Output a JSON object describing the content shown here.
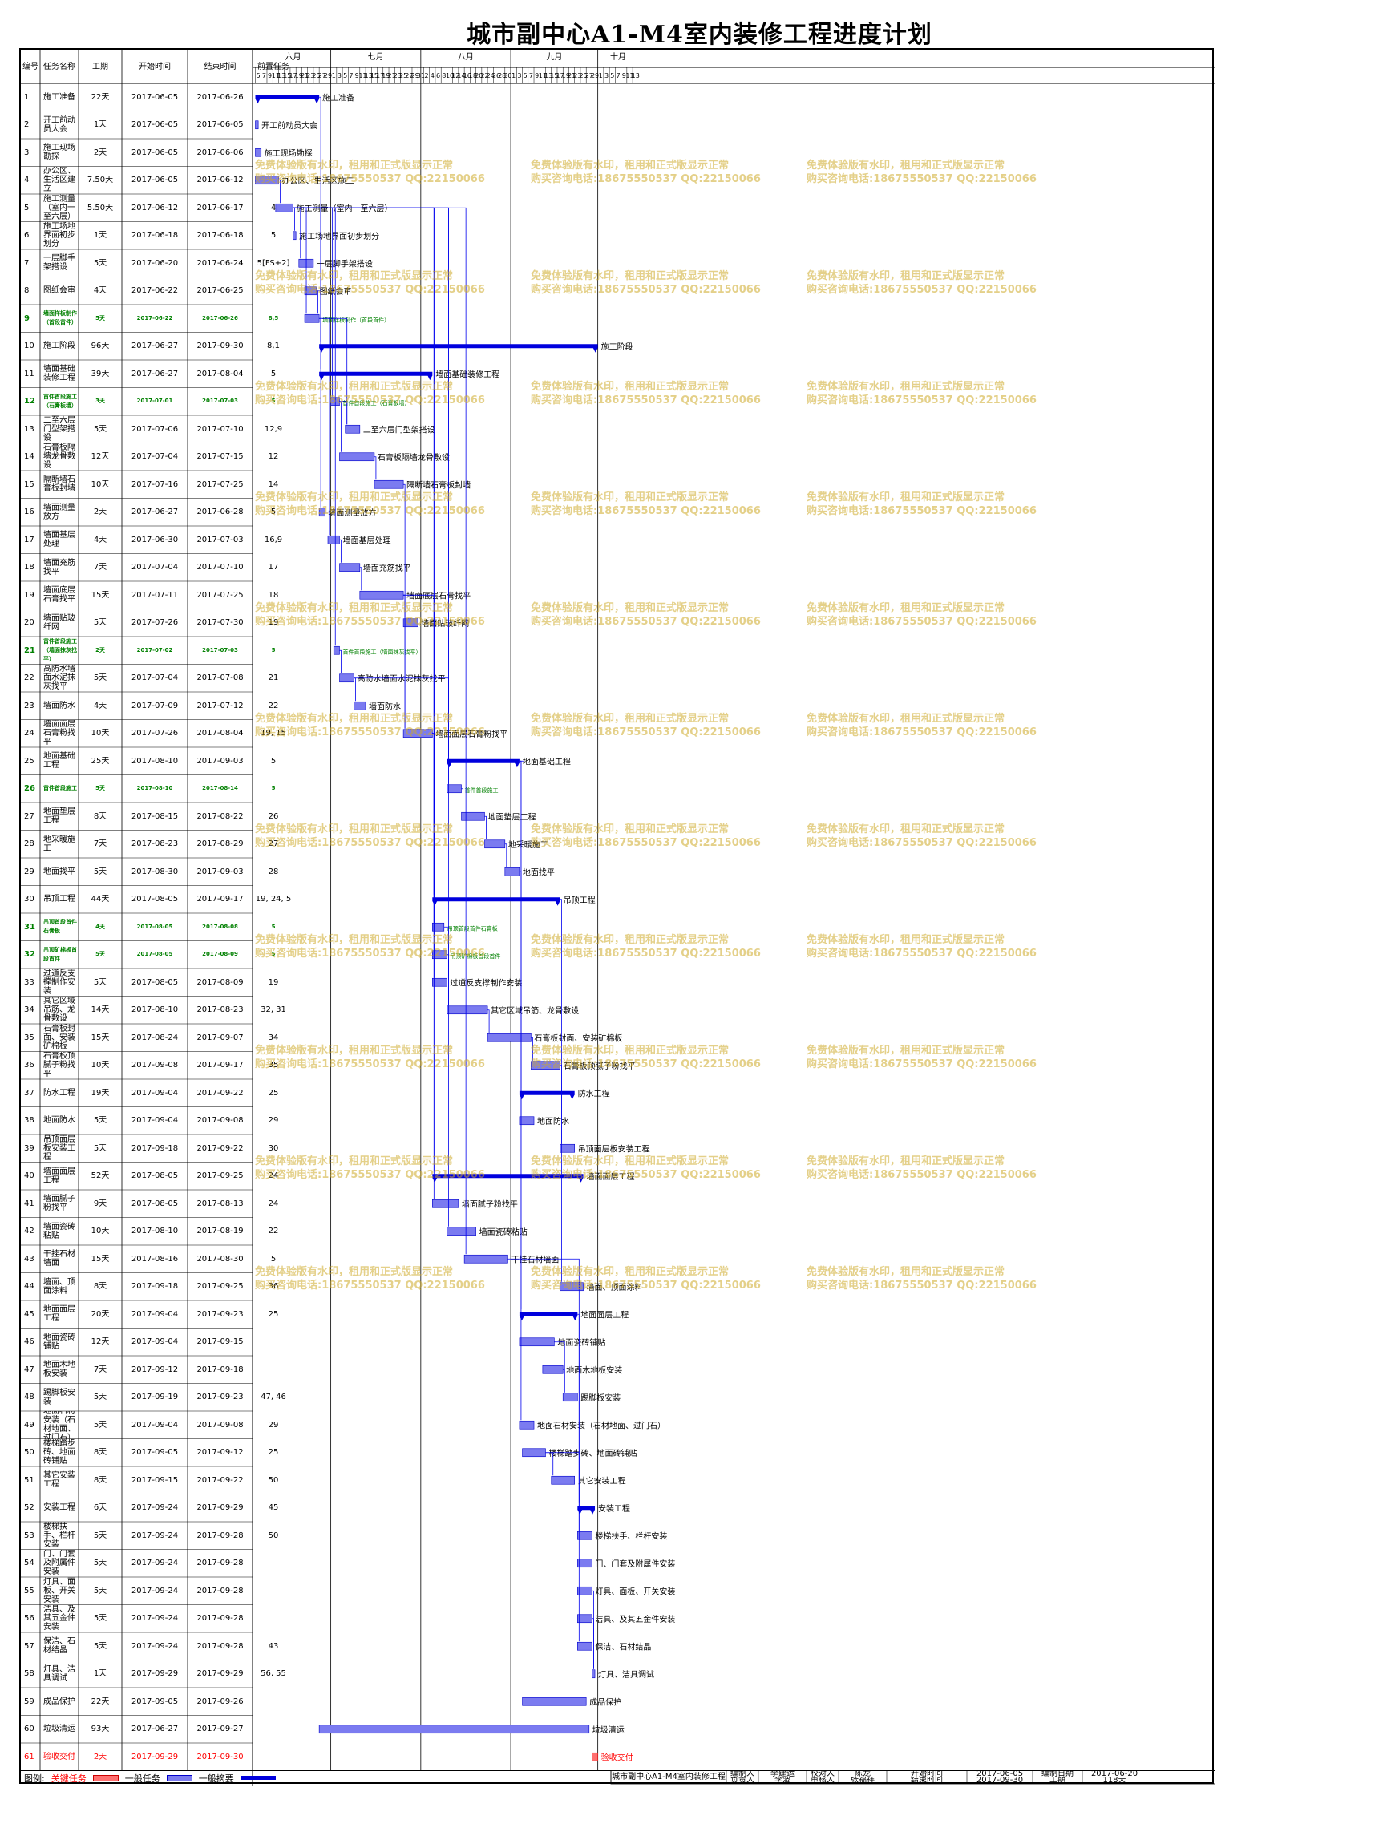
{
  "title": "城市副中心A1-M4室内装修工程进度计划",
  "columns": {
    "id": "编号",
    "name": "任务名称",
    "dur": "工期",
    "start": "开始时间",
    "end": "结束时间",
    "pred": "前置任务"
  },
  "colors": {
    "task": "#7b7bf0",
    "task_border": "#0000cc",
    "summary": "#0000dd",
    "critical": "#ff7070",
    "link": "#0000ee",
    "highlight_text": "#008000",
    "critical_text": "#ff0000",
    "watermark": "#d4b040"
  },
  "months": [
    "六月",
    "七月",
    "八月",
    "九月",
    "十月"
  ],
  "month_days": [
    [
      "5",
      "7",
      "9",
      "11",
      "13",
      "15",
      "17",
      "19",
      "21",
      "23",
      "25",
      "27",
      "29"
    ],
    [
      "1",
      "3",
      "5",
      "7",
      "9",
      "11",
      "13",
      "15",
      "17",
      "19",
      "21",
      "23",
      "25",
      "27",
      "29",
      "31"
    ],
    [
      "2",
      "4",
      "6",
      "8",
      "10",
      "12",
      "14",
      "16",
      "18",
      "20",
      "22",
      "24",
      "26",
      "28",
      "30"
    ],
    [
      "1",
      "3",
      "5",
      "7",
      "9",
      "11",
      "13",
      "15",
      "17",
      "19",
      "21",
      "23",
      "25",
      "27",
      "29"
    ],
    [
      "1",
      "3",
      "5",
      "7",
      "9",
      "11",
      "13"
    ]
  ],
  "tasks": [
    {
      "id": "1",
      "name": "施工准备",
      "dur": "22天",
      "start": "2017-06-05",
      "end": "2017-06-26",
      "pred": "",
      "label": "施工准备",
      "kind": "summary"
    },
    {
      "id": "2",
      "name": "开工前动员大会",
      "dur": "1天",
      "start": "2017-06-05",
      "end": "2017-06-05",
      "pred": "",
      "label": "开工前动员大会",
      "kind": "task"
    },
    {
      "id": "3",
      "name": "施工现场勘探",
      "dur": "2天",
      "start": "2017-06-05",
      "end": "2017-06-06",
      "pred": "",
      "label": "施工现场勘探",
      "kind": "task"
    },
    {
      "id": "4",
      "name": "办公区、生活区建立",
      "dur": "7.50天",
      "start": "2017-06-05",
      "end": "2017-06-12",
      "pred": "",
      "label": "办公区、生活区施工",
      "kind": "task"
    },
    {
      "id": "5",
      "name": "施工测量（室内一至六层）",
      "dur": "5.50天",
      "start": "2017-06-12",
      "end": "2017-06-17",
      "pred": "4",
      "label": "施工测量（室内一至六层）",
      "kind": "task"
    },
    {
      "id": "6",
      "name": "施工场地界面初步划分",
      "dur": "1天",
      "start": "2017-06-18",
      "end": "2017-06-18",
      "pred": "5",
      "label": "施工场地界面初步划分",
      "kind": "task"
    },
    {
      "id": "7",
      "name": "一层脚手架搭设",
      "dur": "5天",
      "start": "2017-06-20",
      "end": "2017-06-24",
      "pred": "5[FS+2]",
      "label": "一层脚手架搭设",
      "kind": "task"
    },
    {
      "id": "8",
      "name": "图纸会审",
      "dur": "4天",
      "start": "2017-06-22",
      "end": "2017-06-25",
      "pred": "",
      "label": "图纸会审",
      "kind": "task"
    },
    {
      "id": "9",
      "name": "墙面样板制作（首段首件）",
      "dur": "5天",
      "start": "2017-06-22",
      "end": "2017-06-26",
      "pred": "8,5",
      "label": "墙面样板制作（首段首件）",
      "kind": "green"
    },
    {
      "id": "10",
      "name": "施工阶段",
      "dur": "96天",
      "start": "2017-06-27",
      "end": "2017-09-30",
      "pred": "8,1",
      "label": "施工阶段",
      "kind": "summary"
    },
    {
      "id": "11",
      "name": "墙面基础装修工程",
      "dur": "39天",
      "start": "2017-06-27",
      "end": "2017-08-04",
      "pred": "5",
      "label": "墙面基础装修工程",
      "kind": "summary"
    },
    {
      "id": "12",
      "name": "首件首段施工（石膏板墙）",
      "dur": "3天",
      "start": "2017-07-01",
      "end": "2017-07-03",
      "pred": "5",
      "label": "首件首段施工（石膏板墙）",
      "kind": "green"
    },
    {
      "id": "13",
      "name": "二至六层门型架搭设",
      "dur": "5天",
      "start": "2017-07-06",
      "end": "2017-07-10",
      "pred": "12,9",
      "label": "二至六层门型架搭设",
      "kind": "task"
    },
    {
      "id": "14",
      "name": "石膏板隔墙龙骨敷设",
      "dur": "12天",
      "start": "2017-07-04",
      "end": "2017-07-15",
      "pred": "12",
      "label": "石膏板隔墙龙骨敷设",
      "kind": "task"
    },
    {
      "id": "15",
      "name": "隔断墙石膏板封墙",
      "dur": "10天",
      "start": "2017-07-16",
      "end": "2017-07-25",
      "pred": "14",
      "label": "隔断墙石膏板封墙",
      "kind": "task"
    },
    {
      "id": "16",
      "name": "墙面测量放方",
      "dur": "2天",
      "start": "2017-06-27",
      "end": "2017-06-28",
      "pred": "5",
      "label": "墙面测量放方",
      "kind": "task"
    },
    {
      "id": "17",
      "name": "墙面基层处理",
      "dur": "4天",
      "start": "2017-06-30",
      "end": "2017-07-03",
      "pred": "16,9",
      "label": "墙面基层处理",
      "kind": "task"
    },
    {
      "id": "18",
      "name": "墙面充筋找平",
      "dur": "7天",
      "start": "2017-07-04",
      "end": "2017-07-10",
      "pred": "17",
      "label": "墙面充筋找平",
      "kind": "task"
    },
    {
      "id": "19",
      "name": "墙面底层石膏找平",
      "dur": "15天",
      "start": "2017-07-11",
      "end": "2017-07-25",
      "pred": "18",
      "label": "墙面底层石膏找平",
      "kind": "task"
    },
    {
      "id": "20",
      "name": "墙面贴玻纤网",
      "dur": "5天",
      "start": "2017-07-26",
      "end": "2017-07-30",
      "pred": "19",
      "label": "墙面贴玻纤网",
      "kind": "task"
    },
    {
      "id": "21",
      "name": "首件首段施工（墙面抹灰找平）",
      "dur": "2天",
      "start": "2017-07-02",
      "end": "2017-07-03",
      "pred": "5",
      "label": "首件首段施工（墙面抹灰找平）",
      "kind": "green"
    },
    {
      "id": "22",
      "name": "高防水墙面水泥抹灰找平",
      "dur": "5天",
      "start": "2017-07-04",
      "end": "2017-07-08",
      "pred": "21",
      "label": "高防水墙面水泥抹灰找平",
      "kind": "task"
    },
    {
      "id": "23",
      "name": "墙面防水",
      "dur": "4天",
      "start": "2017-07-09",
      "end": "2017-07-12",
      "pred": "22",
      "label": "墙面防水",
      "kind": "task"
    },
    {
      "id": "24",
      "name": "墙面面层石膏粉找平",
      "dur": "10天",
      "start": "2017-07-26",
      "end": "2017-08-04",
      "pred": "19, 15",
      "label": "墙面面层石膏粉找平",
      "kind": "task"
    },
    {
      "id": "25",
      "name": "地面基础工程",
      "dur": "25天",
      "start": "2017-08-10",
      "end": "2017-09-03",
      "pred": "5",
      "label": "地面基础工程",
      "kind": "summary"
    },
    {
      "id": "26",
      "name": "首件首段施工",
      "dur": "5天",
      "start": "2017-08-10",
      "end": "2017-08-14",
      "pred": "5",
      "label": "首件首段施工",
      "kind": "green"
    },
    {
      "id": "27",
      "name": "地面垫层工程",
      "dur": "8天",
      "start": "2017-08-15",
      "end": "2017-08-22",
      "pred": "26",
      "label": "地面垫层工程",
      "kind": "task"
    },
    {
      "id": "28",
      "name": "地采暖施工",
      "dur": "7天",
      "start": "2017-08-23",
      "end": "2017-08-29",
      "pred": "27",
      "label": "地采暖施工",
      "kind": "task"
    },
    {
      "id": "29",
      "name": "地面找平",
      "dur": "5天",
      "start": "2017-08-30",
      "end": "2017-09-03",
      "pred": "28",
      "label": "地面找平",
      "kind": "task"
    },
    {
      "id": "30",
      "name": "吊顶工程",
      "dur": "44天",
      "start": "2017-08-05",
      "end": "2017-09-17",
      "pred": "19, 24, 5",
      "label": "吊顶工程",
      "kind": "summary"
    },
    {
      "id": "31",
      "name": "吊顶首段首件石膏板",
      "dur": "4天",
      "start": "2017-08-05",
      "end": "2017-08-08",
      "pred": "5",
      "label": "吊顶首段首件石膏板",
      "kind": "green"
    },
    {
      "id": "32",
      "name": "吊顶矿棉板首段首件",
      "dur": "5天",
      "start": "2017-08-05",
      "end": "2017-08-09",
      "pred": "5",
      "label": "吊顶矿棉板首段首件",
      "kind": "green"
    },
    {
      "id": "33",
      "name": "过道反支撑制作安装",
      "dur": "5天",
      "start": "2017-08-05",
      "end": "2017-08-09",
      "pred": "19",
      "label": "过道反支撑制作安装",
      "kind": "task"
    },
    {
      "id": "34",
      "name": "其它区域吊筋、龙骨敷设",
      "dur": "14天",
      "start": "2017-08-10",
      "end": "2017-08-23",
      "pred": "32, 31",
      "label": "其它区域吊筋、龙骨敷设",
      "kind": "task"
    },
    {
      "id": "35",
      "name": "石膏板封面、安装矿棉板",
      "dur": "15天",
      "start": "2017-08-24",
      "end": "2017-09-07",
      "pred": "34",
      "label": "石膏板封面、安装矿棉板",
      "kind": "task"
    },
    {
      "id": "36",
      "name": "石膏板顶腻子粉找平",
      "dur": "10天",
      "start": "2017-09-08",
      "end": "2017-09-17",
      "pred": "35",
      "label": "石膏板顶腻子粉找平",
      "kind": "task"
    },
    {
      "id": "37",
      "name": "防水工程",
      "dur": "19天",
      "start": "2017-09-04",
      "end": "2017-09-22",
      "pred": "25",
      "label": "防水工程",
      "kind": "summary"
    },
    {
      "id": "38",
      "name": "地面防水",
      "dur": "5天",
      "start": "2017-09-04",
      "end": "2017-09-08",
      "pred": "29",
      "label": "地面防水",
      "kind": "task"
    },
    {
      "id": "39",
      "name": "吊顶面层板安装工程",
      "dur": "5天",
      "start": "2017-09-18",
      "end": "2017-09-22",
      "pred": "30",
      "label": "吊顶面层板安装工程",
      "kind": "task"
    },
    {
      "id": "40",
      "name": "墙面面层工程",
      "dur": "52天",
      "start": "2017-08-05",
      "end": "2017-09-25",
      "pred": "24",
      "label": "墙面面层工程",
      "kind": "summary"
    },
    {
      "id": "41",
      "name": "墙面腻子粉找平",
      "dur": "9天",
      "start": "2017-08-05",
      "end": "2017-08-13",
      "pred": "24",
      "label": "墙面腻子粉找平",
      "kind": "task"
    },
    {
      "id": "42",
      "name": "墙面瓷砖粘贴",
      "dur": "10天",
      "start": "2017-08-10",
      "end": "2017-08-19",
      "pred": "22",
      "label": "墙面瓷砖粘贴",
      "kind": "task"
    },
    {
      "id": "43",
      "name": "干挂石材墙面",
      "dur": "15天",
      "start": "2017-08-16",
      "end": "2017-08-30",
      "pred": "5",
      "label": "干挂石材墙面",
      "kind": "task"
    },
    {
      "id": "44",
      "name": "墙面、顶面涂料",
      "dur": "8天",
      "start": "2017-09-18",
      "end": "2017-09-25",
      "pred": "36",
      "label": "墙面、顶面涂料",
      "kind": "task"
    },
    {
      "id": "45",
      "name": "地面面层工程",
      "dur": "20天",
      "start": "2017-09-04",
      "end": "2017-09-23",
      "pred": "25",
      "label": "地面面层工程",
      "kind": "summary"
    },
    {
      "id": "46",
      "name": "地面瓷砖铺贴",
      "dur": "12天",
      "start": "2017-09-04",
      "end": "2017-09-15",
      "pred": "",
      "label": "地面瓷砖铺贴",
      "kind": "task"
    },
    {
      "id": "47",
      "name": "地面木地板安装",
      "dur": "7天",
      "start": "2017-09-12",
      "end": "2017-09-18",
      "pred": "",
      "label": "地面木地板安装",
      "kind": "task"
    },
    {
      "id": "48",
      "name": "踢脚板安装",
      "dur": "5天",
      "start": "2017-09-19",
      "end": "2017-09-23",
      "pred": "47, 46",
      "label": "踢脚板安装",
      "kind": "task"
    },
    {
      "id": "49",
      "name": "地面石材安装（石材地面、过门石）",
      "dur": "5天",
      "start": "2017-09-04",
      "end": "2017-09-08",
      "pred": "29",
      "label": "地面石材安装（石材地面、过门石）",
      "kind": "task"
    },
    {
      "id": "50",
      "name": "楼梯踏步砖、地面砖铺贴",
      "dur": "8天",
      "start": "2017-09-05",
      "end": "2017-09-12",
      "pred": "25",
      "label": "楼梯踏步砖、地面砖铺贴",
      "kind": "task"
    },
    {
      "id": "51",
      "name": "其它安装工程",
      "dur": "8天",
      "start": "2017-09-15",
      "end": "2017-09-22",
      "pred": "50",
      "label": "其它安装工程",
      "kind": "task"
    },
    {
      "id": "52",
      "name": "安装工程",
      "dur": "6天",
      "start": "2017-09-24",
      "end": "2017-09-29",
      "pred": "45",
      "label": "安装工程",
      "kind": "summary"
    },
    {
      "id": "53",
      "name": "楼梯扶手、栏杆安装",
      "dur": "5天",
      "start": "2017-09-24",
      "end": "2017-09-28",
      "pred": "50",
      "label": "楼梯扶手、栏杆安装",
      "kind": "task"
    },
    {
      "id": "54",
      "name": "门、门套及附属件安装",
      "dur": "5天",
      "start": "2017-09-24",
      "end": "2017-09-28",
      "pred": "",
      "label": "门、门套及附属件安装",
      "kind": "task"
    },
    {
      "id": "55",
      "name": "灯具、面板、开关安装",
      "dur": "5天",
      "start": "2017-09-24",
      "end": "2017-09-28",
      "pred": "",
      "label": "灯具、面板、开关安装",
      "kind": "task"
    },
    {
      "id": "56",
      "name": "洁具、及其五金件安装",
      "dur": "5天",
      "start": "2017-09-24",
      "end": "2017-09-28",
      "pred": "",
      "label": "洁具、及其五金件安装",
      "kind": "task"
    },
    {
      "id": "57",
      "name": "保洁、石材结晶",
      "dur": "5天",
      "start": "2017-09-24",
      "end": "2017-09-28",
      "pred": "43",
      "label": "保洁、石材结晶",
      "kind": "task"
    },
    {
      "id": "58",
      "name": "灯具、洁具调试",
      "dur": "1天",
      "start": "2017-09-29",
      "end": "2017-09-29",
      "pred": "56, 55",
      "label": "灯具、洁具调试",
      "kind": "task"
    },
    {
      "id": "59",
      "name": "成品保护",
      "dur": "22天",
      "start": "2017-09-05",
      "end": "2017-09-26",
      "pred": "",
      "label": "成品保护",
      "kind": "task"
    },
    {
      "id": "60",
      "name": "垃圾清运",
      "dur": "93天",
      "start": "2017-06-27",
      "end": "2017-09-27",
      "pred": "",
      "label": "垃圾清运",
      "kind": "task"
    },
    {
      "id": "61",
      "name": "验收交付",
      "dur": "2天",
      "start": "2017-09-29",
      "end": "2017-09-30",
      "pred": "",
      "label": "验收交付",
      "kind": "critical"
    }
  ],
  "watermark": {
    "line1": "免费体验版有水印，租用和正式版显示正常",
    "line2": "购买咨询电话:18675550537 QQ:22150066"
  },
  "legend": {
    "label": "图例:",
    "critical": "关键任务",
    "normal": "一般任务",
    "summary": "一般摘要"
  },
  "footer": {
    "project": "城市副中心A1-M4室内装修工程",
    "prep_label": "编制人",
    "prep_value": "李建运",
    "check_label": "校对人",
    "check_value": "陈龙",
    "review_label": "审核人",
    "review_value": "张福祥",
    "resp_label": "负责人",
    "resp_value": "李波",
    "start_label": "开始时间",
    "start_value": "2017-06-05",
    "end_label": "结束时间",
    "end_value": "2017-09-30",
    "date_label": "编制日期",
    "date_value": "2017-06-20",
    "dur_label": "工期",
    "dur_value": "118天"
  }
}
